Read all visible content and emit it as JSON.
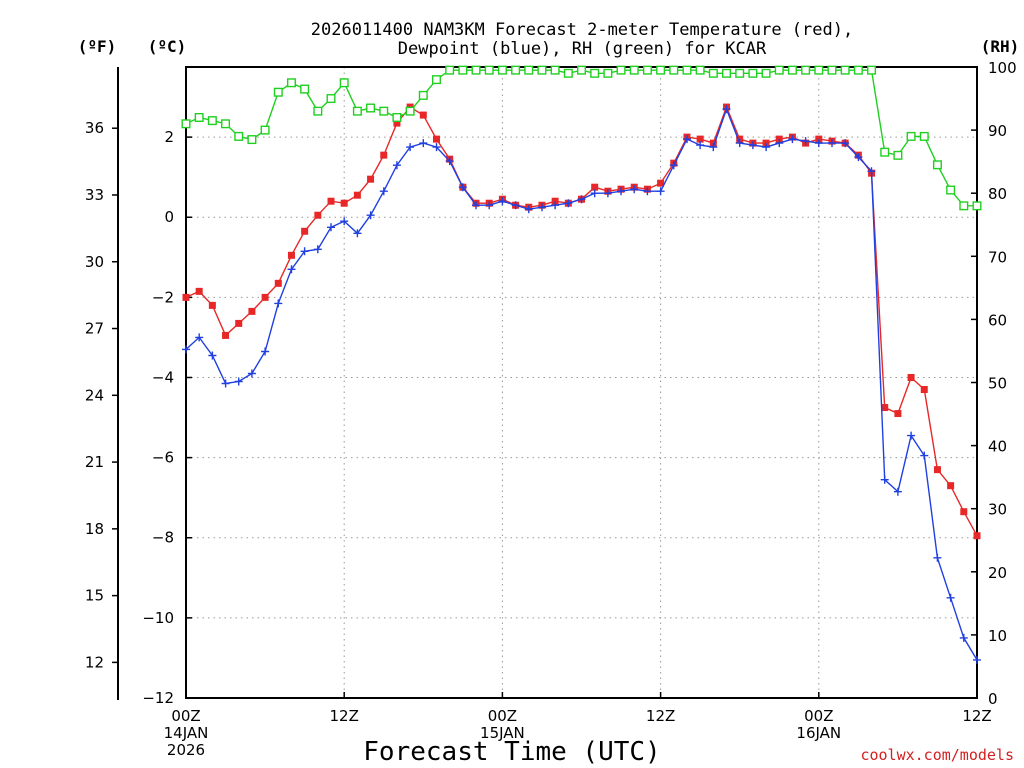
{
  "title_line1": "2026011400 NAM3KM Forecast 2-meter Temperature (red),",
  "title_line2": "Dewpoint (blue), RH (green) for KCAR",
  "unit_f": "(ºF)",
  "unit_c": "(ºC)",
  "unit_rh": "(RH)",
  "xlabel": "Forecast Time (UTC)",
  "credit": "coolwx.com/models",
  "colors": {
    "temperature": "#e82828",
    "dewpoint": "#2040e0",
    "rh": "#20d020"
  },
  "chart_data": {
    "type": "line",
    "title": "2026011400 NAM3KM Forecast 2-meter Temperature (red), Dewpoint (blue), RH (green) for KCAR",
    "xlabel": "Forecast Time (UTC)",
    "x_unit": "forecast hour",
    "xlim": [
      0,
      60
    ],
    "x_ticks": [
      {
        "hour": 0,
        "lines": [
          "00Z",
          "14JAN",
          "2026"
        ]
      },
      {
        "hour": 12,
        "lines": [
          "12Z"
        ]
      },
      {
        "hour": 24,
        "lines": [
          "00Z",
          "15JAN"
        ]
      },
      {
        "hour": 36,
        "lines": [
          "12Z"
        ]
      },
      {
        "hour": 48,
        "lines": [
          "00Z",
          "16JAN"
        ]
      },
      {
        "hour": 60,
        "lines": [
          "12Z"
        ]
      }
    ],
    "y_left_c": {
      "label": "(ºC)",
      "ylim": [
        -12,
        3.75
      ],
      "ticks": [
        -12,
        -10,
        -8,
        -6,
        -4,
        -2,
        0,
        2
      ]
    },
    "y_left_f": {
      "label": "(ºF)",
      "ticks": [
        12,
        15,
        18,
        21,
        24,
        27,
        30,
        33,
        36
      ]
    },
    "y_right_rh": {
      "label": "(RH)",
      "ylim": [
        0,
        100
      ],
      "ticks": [
        0,
        10,
        20,
        30,
        40,
        50,
        60,
        70,
        80,
        90,
        100
      ]
    },
    "x": [
      0,
      1,
      2,
      3,
      4,
      5,
      6,
      7,
      8,
      9,
      10,
      11,
      12,
      13,
      14,
      15,
      16,
      17,
      18,
      19,
      20,
      21,
      22,
      23,
      24,
      25,
      26,
      27,
      28,
      29,
      30,
      31,
      32,
      33,
      34,
      35,
      36,
      37,
      38,
      39,
      40,
      41,
      42,
      43,
      44,
      45,
      46,
      47,
      48,
      49,
      50,
      51,
      52,
      53,
      54,
      55,
      56,
      57,
      58,
      59,
      60
    ],
    "series": [
      {
        "name": "Temperature",
        "axis": "C",
        "marker": "square",
        "values": [
          -2.0,
          -1.85,
          -2.2,
          -2.95,
          -2.65,
          -2.35,
          -2.0,
          -1.65,
          -0.95,
          -0.35,
          0.05,
          0.4,
          0.35,
          0.55,
          0.95,
          1.55,
          2.35,
          2.75,
          2.55,
          1.95,
          1.45,
          0.75,
          0.35,
          0.35,
          0.45,
          0.3,
          0.25,
          0.3,
          0.4,
          0.35,
          0.45,
          0.75,
          0.65,
          0.7,
          0.75,
          0.7,
          0.85,
          1.35,
          2.0,
          1.95,
          1.85,
          2.75,
          1.95,
          1.85,
          1.85,
          1.95,
          2.0,
          1.85,
          1.95,
          1.9,
          1.85,
          1.55,
          1.1,
          -4.75,
          -4.9,
          -4.0,
          -4.3,
          -6.3,
          -6.7,
          -7.35,
          -7.95
        ]
      },
      {
        "name": "Dewpoint",
        "axis": "C",
        "marker": "plus",
        "values": [
          -3.3,
          -3.0,
          -3.45,
          -4.15,
          -4.1,
          -3.9,
          -3.35,
          -2.15,
          -1.3,
          -0.85,
          -0.8,
          -0.25,
          -0.1,
          -0.4,
          0.05,
          0.65,
          1.3,
          1.75,
          1.85,
          1.75,
          1.4,
          0.75,
          0.3,
          0.3,
          0.4,
          0.3,
          0.2,
          0.25,
          0.3,
          0.35,
          0.45,
          0.6,
          0.6,
          0.65,
          0.7,
          0.65,
          0.65,
          1.3,
          1.95,
          1.8,
          1.75,
          2.7,
          1.85,
          1.8,
          1.75,
          1.85,
          1.95,
          1.9,
          1.85,
          1.85,
          1.85,
          1.5,
          1.15,
          -6.55,
          -6.85,
          -5.45,
          -5.95,
          -8.5,
          -9.5,
          -10.5,
          -11.05
        ]
      },
      {
        "name": "RH",
        "axis": "RH",
        "marker": "open-square",
        "values": [
          91,
          92,
          91.5,
          91,
          89,
          88.5,
          90,
          96,
          97.5,
          96.5,
          93,
          95,
          97.5,
          93,
          93.5,
          93,
          92,
          93,
          95.5,
          98,
          99.5,
          99.5,
          99.5,
          99.5,
          99.5,
          99.5,
          99.5,
          99.5,
          99.5,
          99,
          99.5,
          99,
          99,
          99.5,
          99.5,
          99.5,
          99.5,
          99.5,
          99.5,
          99.5,
          99,
          99,
          99,
          99,
          99,
          99.5,
          99.5,
          99.5,
          99.5,
          99.5,
          99.5,
          99.5,
          99.5,
          86.5,
          86,
          89,
          89,
          84.5,
          80.5,
          78,
          78
        ]
      }
    ]
  }
}
